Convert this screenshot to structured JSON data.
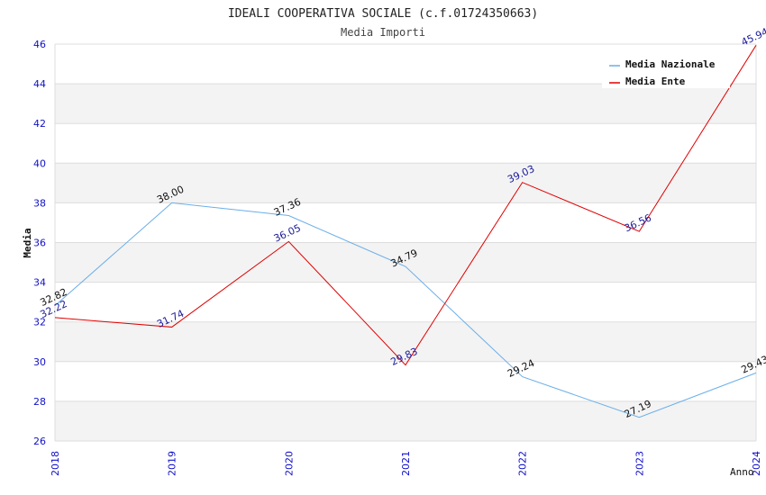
{
  "chart_data": {
    "type": "line",
    "title": "IDEALI COOPERATIVA SOCIALE (c.f.01724350663)",
    "subtitle": "Media Importi",
    "xlabel": "Anno",
    "ylabel": "Media",
    "x": [
      "2018",
      "2019",
      "2020",
      "2021",
      "2022",
      "2023",
      "2024"
    ],
    "ylim": [
      26,
      46
    ],
    "yticks": [
      26,
      28,
      30,
      32,
      34,
      36,
      38,
      40,
      42,
      44,
      46
    ],
    "ytick_labels": [
      "26",
      "28",
      "30",
      "32",
      "34",
      "36",
      "38",
      "40",
      "42",
      "44",
      "46"
    ],
    "grid": true,
    "legend_position": "top-right",
    "series": [
      {
        "name": "Media Nazionale",
        "color": "#6aaee8",
        "label_color": "#111111",
        "values": [
          32.82,
          38.0,
          37.36,
          34.79,
          29.24,
          27.19,
          29.43
        ],
        "labels": [
          "32.82",
          "38.00",
          "37.36",
          "34.79",
          "29.24",
          "27.19",
          "29.43"
        ]
      },
      {
        "name": "Media Ente",
        "color": "#e00000",
        "label_color": "#1a1a9a",
        "values": [
          32.22,
          31.74,
          36.05,
          29.83,
          39.03,
          36.56,
          45.94
        ],
        "labels": [
          "32.22",
          "31.74",
          "36.05",
          "29.83",
          "39.03",
          "36.56",
          "45.94"
        ]
      }
    ]
  }
}
